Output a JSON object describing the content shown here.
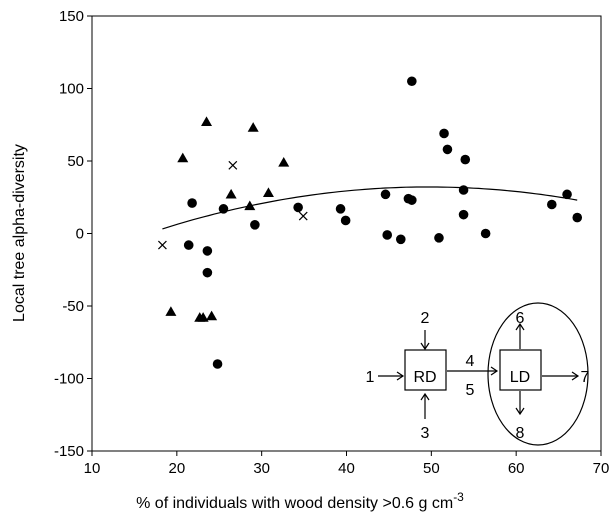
{
  "chart_data": {
    "type": "scatter",
    "title": "",
    "xlabel": "% of  individuals with wood density >0.6 g cm",
    "xlabel_superscript": "-3",
    "ylabel": "Local tree alpha-diversity",
    "xlim": [
      10,
      70
    ],
    "ylim": [
      -150,
      150
    ],
    "xticks": [
      10,
      20,
      30,
      40,
      50,
      60,
      70
    ],
    "yticks": [
      -150,
      -100,
      -50,
      0,
      50,
      100,
      150
    ],
    "grid": false,
    "legend": "none",
    "series": [
      {
        "marker": "triangle",
        "color": "#000000",
        "points": [
          {
            "x": 20.7,
            "y": 52
          },
          {
            "x": 23.5,
            "y": 77
          },
          {
            "x": 29.0,
            "y": 73
          },
          {
            "x": 32.6,
            "y": 49
          },
          {
            "x": 26.4,
            "y": 27
          },
          {
            "x": 30.8,
            "y": 28
          },
          {
            "x": 28.6,
            "y": 19
          },
          {
            "x": 19.3,
            "y": -54
          },
          {
            "x": 23.1,
            "y": -58
          },
          {
            "x": 22.7,
            "y": -58
          },
          {
            "x": 24.1,
            "y": -57
          }
        ]
      },
      {
        "marker": "x",
        "color": "#000000",
        "points": [
          {
            "x": 18.3,
            "y": -8
          },
          {
            "x": 26.6,
            "y": 47
          },
          {
            "x": 34.9,
            "y": 12
          }
        ]
      },
      {
        "marker": "circle",
        "color": "#000000",
        "points": [
          {
            "x": 21.4,
            "y": -8
          },
          {
            "x": 21.8,
            "y": 21
          },
          {
            "x": 23.6,
            "y": -12
          },
          {
            "x": 23.6,
            "y": -27
          },
          {
            "x": 24.8,
            "y": -90
          },
          {
            "x": 25.5,
            "y": 17
          },
          {
            "x": 29.2,
            "y": 6
          },
          {
            "x": 34.3,
            "y": 18
          },
          {
            "x": 39.3,
            "y": 17
          },
          {
            "x": 39.9,
            "y": 9
          },
          {
            "x": 44.6,
            "y": 27
          },
          {
            "x": 44.8,
            "y": -1
          },
          {
            "x": 46.4,
            "y": -4
          },
          {
            "x": 47.3,
            "y": 24
          },
          {
            "x": 47.7,
            "y": 23
          },
          {
            "x": 47.7,
            "y": 105
          },
          {
            "x": 50.9,
            "y": -3
          },
          {
            "x": 51.5,
            "y": 69
          },
          {
            "x": 51.9,
            "y": 58
          },
          {
            "x": 53.8,
            "y": 30
          },
          {
            "x": 53.8,
            "y": 13
          },
          {
            "x": 54.0,
            "y": 51
          },
          {
            "x": 56.4,
            "y": 0
          },
          {
            "x": 64.2,
            "y": 20
          },
          {
            "x": 66.0,
            "y": 27
          },
          {
            "x": 67.2,
            "y": 11
          }
        ]
      }
    ],
    "fit_curve": {
      "type": "quadratic",
      "coefficients": {
        "a": -0.0294,
        "b": 2.92,
        "c": -40.4
      },
      "x_range": [
        18.3,
        67.2
      ]
    },
    "inset_diagram": {
      "boxes": [
        "RD",
        "LD"
      ],
      "labels": [
        "1",
        "2",
        "3",
        "4",
        "5",
        "6",
        "7",
        "8"
      ]
    }
  }
}
